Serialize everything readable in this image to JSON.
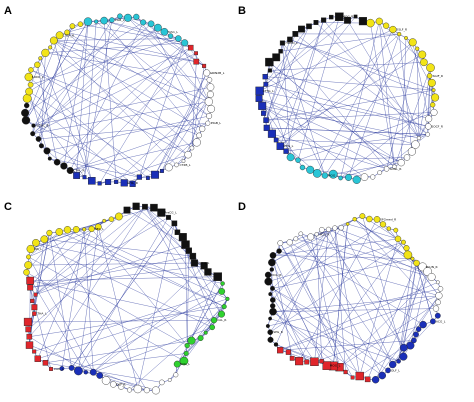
{
  "figure": {
    "panels": [
      {
        "label": "A",
        "edge_color": "#2b3a9e",
        "groups": [
          {
            "color": "#29c5d6",
            "shape": "circle",
            "count": 14
          },
          {
            "color": "#e0252b",
            "shape": "square",
            "count": 4
          },
          {
            "color": "#ffffff",
            "shape": "circle",
            "count": 16
          },
          {
            "color": "#1a2fb8",
            "shape": "square",
            "count": 12
          },
          {
            "color": "#111111",
            "shape": "circle",
            "count": 12
          },
          {
            "color": "#f2e417",
            "shape": "circle",
            "count": 14
          }
        ],
        "node_labels": [
          "PILB_L",
          "TAS1_L",
          "GRIN2B_L",
          "PIGB_L",
          "CT2B_L",
          "CHIL_R",
          "CTHL_R",
          "SODC_R",
          "SODC_L",
          "CTBA_R"
        ]
      },
      {
        "label": "B",
        "edge_color": "#2b3a9e",
        "groups": [
          {
            "color": "#f2e417",
            "shape": "circle",
            "count": 16
          },
          {
            "color": "#ffffff",
            "shape": "circle",
            "count": 14
          },
          {
            "color": "#29c5d6",
            "shape": "circle",
            "count": 10
          },
          {
            "color": "#1a2fb8",
            "shape": "square",
            "count": 12
          },
          {
            "color": "#111111",
            "shape": "square",
            "count": 16
          }
        ],
        "node_labels": [
          "DSLF_R",
          "SGIF_R",
          "SOCF_R",
          "SOGL_R",
          "MOG_L",
          "IPTG_L",
          "CTTG_L",
          "HIPPO_L",
          "MOG_R"
        ]
      },
      {
        "label": "C",
        "edge_color": "#2b3a9e",
        "groups": [
          {
            "color": "#111111",
            "shape": "square",
            "count": 16
          },
          {
            "color": "#2fd12f",
            "shape": "circle",
            "count": 14
          },
          {
            "color": "#ffffff",
            "shape": "circle",
            "count": 10
          },
          {
            "color": "#1a2fb8",
            "shape": "circle",
            "count": 6
          },
          {
            "color": "#e0252b",
            "shape": "square",
            "count": 14
          },
          {
            "color": "#f2e417",
            "shape": "circle",
            "count": 16
          }
        ],
        "node_labels": [
          "PreCG_L",
          "SOCG_L",
          "CAL_R",
          "SOG_L",
          "OLF_R",
          "CAU_L",
          "THA_L",
          "INS_L",
          "REC_L"
        ]
      },
      {
        "label": "D",
        "edge_color": "#2b3a9e",
        "groups": [
          {
            "color": "#f2e417",
            "shape": "circle",
            "count": 14
          },
          {
            "color": "#ffffff",
            "shape": "circle",
            "count": 8
          },
          {
            "color": "#1a2fb8",
            "shape": "circle",
            "count": 14
          },
          {
            "color": "#e0252b",
            "shape": "square",
            "count": 14
          },
          {
            "color": "#111111",
            "shape": "circle",
            "count": 16
          },
          {
            "color": "#ffffff",
            "shape": "circle",
            "count": 10
          }
        ],
        "node_labels": [
          "SFGmed_R",
          "PCUN_R",
          "ACG_L",
          "OLF_L",
          "MOG_L",
          "SPG_R",
          "DCG_R",
          "PCG_R"
        ]
      }
    ]
  }
}
